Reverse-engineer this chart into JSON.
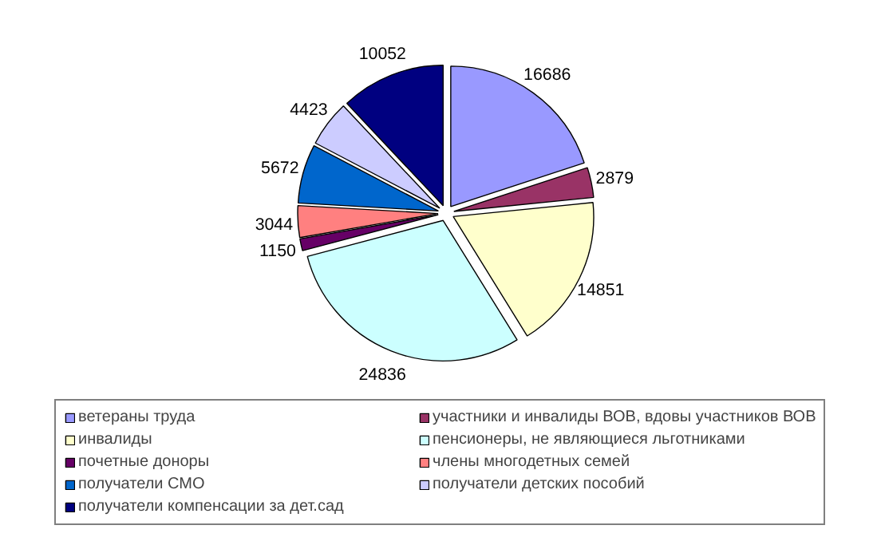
{
  "chart_data": {
    "type": "pie",
    "categories": [
      "ветераны труда",
      "участники и инвалиды ВОВ, вдовы участников ВОВ",
      "инвалиды",
      "пенсионеры, не являющиеся льготниками",
      "почетные доноры",
      "члены многодетных семей",
      "получатели СМО",
      "получатели детских пособий",
      "получатели компенсации за дет.сад"
    ],
    "values": [
      16686,
      2879,
      14851,
      24836,
      1150,
      3044,
      5672,
      4423,
      10052
    ],
    "colors": [
      "#9999ff",
      "#993366",
      "#ffffcc",
      "#ccffff",
      "#660066",
      "#ff8080",
      "#0066cc",
      "#ccccff",
      "#000080"
    ],
    "data_labels": true,
    "legend": "bottom"
  }
}
